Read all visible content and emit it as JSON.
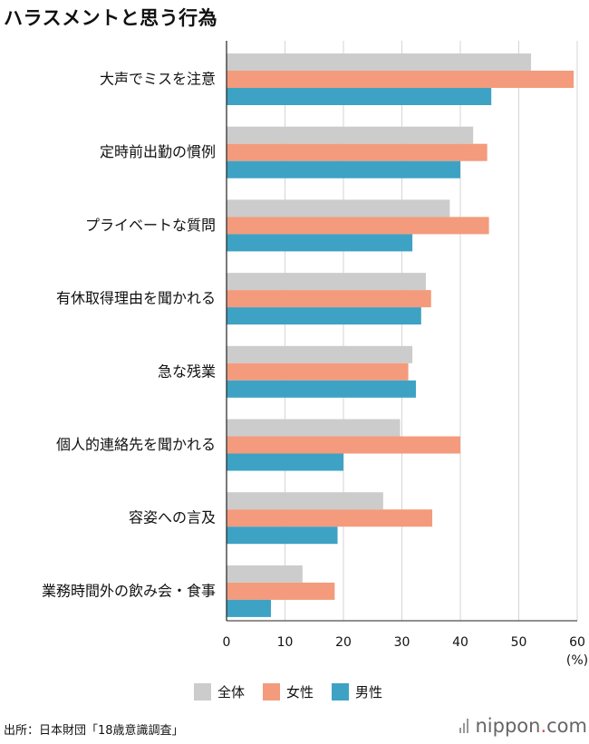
{
  "title": "ハラスメントと思う行為",
  "chart_data": {
    "type": "bar",
    "orientation": "horizontal",
    "title": "ハラスメントと思う行為",
    "unit_label": "(%)",
    "xlim": [
      0,
      60
    ],
    "xticks": [
      0,
      10,
      20,
      30,
      40,
      50,
      60
    ],
    "grid": true,
    "legend_position": "bottom",
    "categories": [
      "大声でミスを注意",
      "定時前出勤の慣例",
      "プライベートな質問",
      "有休取得理由を聞かれる",
      "急な残業",
      "個人的連絡先を聞かれる",
      "容姿への言及",
      "業務時間外の飲み会・食事"
    ],
    "series": [
      {
        "name": "全体",
        "color": "#cccccc",
        "values": [
          52.1,
          42.2,
          38.2,
          34.1,
          31.8,
          29.7,
          26.8,
          13.0
        ]
      },
      {
        "name": "女性",
        "color": "#f39b7c",
        "values": [
          59.4,
          44.6,
          44.9,
          35.0,
          31.1,
          40.0,
          35.2,
          18.5
        ]
      },
      {
        "name": "男性",
        "color": "#3ea2c4",
        "values": [
          45.3,
          40.0,
          31.8,
          33.3,
          32.4,
          20.0,
          19.0,
          7.6
        ]
      }
    ]
  },
  "source": "出所：日本財団「18歳意識調査」",
  "brand": {
    "name": "nippon",
    "dot": ".",
    "tld": "com"
  }
}
